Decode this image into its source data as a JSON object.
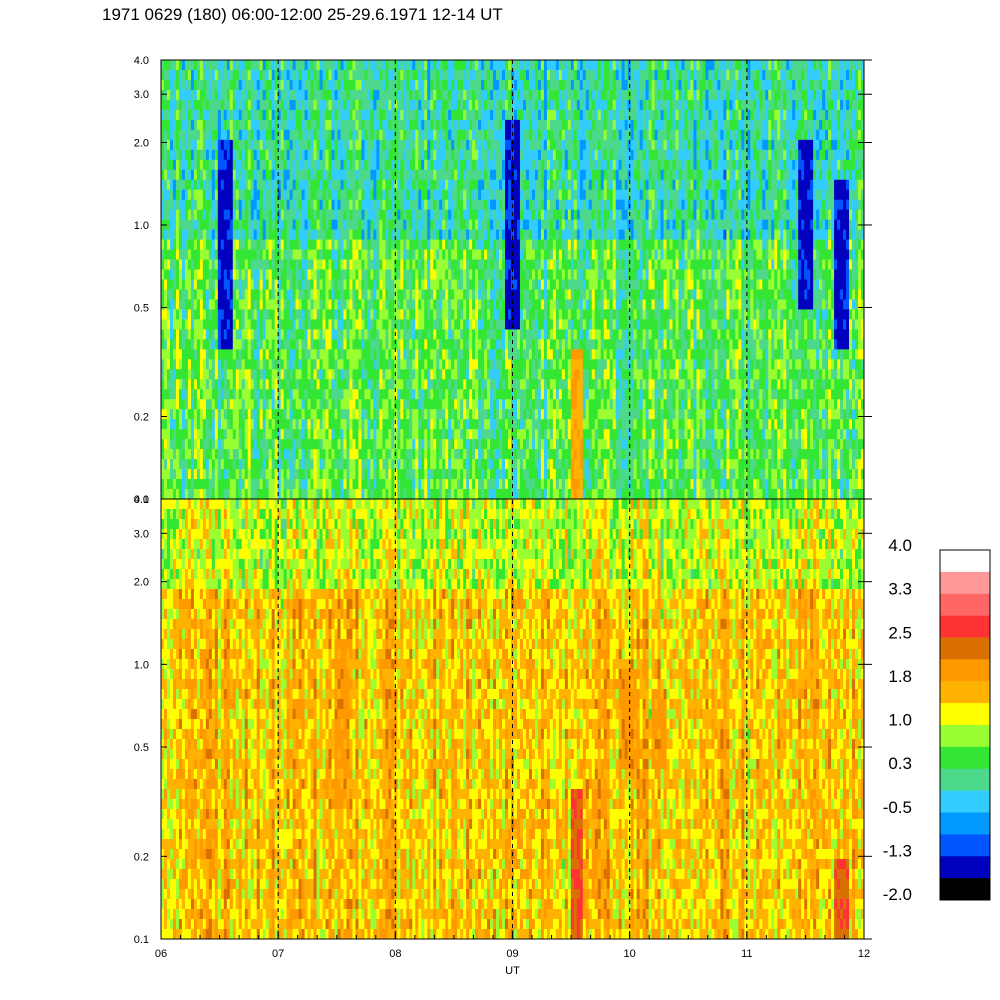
{
  "figure": {
    "title": "1971 0629 (180) 06:00-12:00 25-29.6.1971  12-14 UT"
  },
  "chart_data": {
    "type": "heatmap",
    "title": "1971 0629 (180) 06:00-12:00 25-29.6.1971  12-14 UT",
    "xlabel": "UT",
    "xlim": [
      6,
      12
    ],
    "x_tick_labels": [
      "06",
      "07",
      "08",
      "09",
      "10",
      "11",
      "12"
    ],
    "x_tick_values": [
      6,
      7,
      8,
      9,
      10,
      11,
      12
    ],
    "dashed_time_markers": [
      7,
      8,
      9,
      10,
      11
    ],
    "panels": [
      {
        "name": "top",
        "y_scale": "log",
        "ylim": [
          0.1,
          4.0
        ],
        "y_tick_values": [
          0.1,
          0.2,
          0.5,
          1.0,
          2.0,
          3.0,
          4.0
        ],
        "y_tick_labels": [
          "0.1",
          "0.2",
          "0.5",
          "1.0",
          "2.0",
          "3.0",
          "4.0"
        ],
        "background_level": 0.3,
        "features": [
          {
            "x": 6.55,
            "y": [
              0.35,
              2.0
            ],
            "level": -1.5
          },
          {
            "x": 9.0,
            "y": [
              0.4,
              2.5
            ],
            "level": -1.5
          },
          {
            "x": 9.55,
            "y": [
              0.1,
              0.35
            ],
            "level": 1.8
          },
          {
            "x": 11.5,
            "y": [
              0.5,
              2.0
            ],
            "level": -1.5
          },
          {
            "x": 11.8,
            "y": [
              0.35,
              1.5
            ],
            "level": -1.5
          }
        ]
      },
      {
        "name": "bottom",
        "y_scale": "log",
        "ylim": [
          0.1,
          4.0
        ],
        "y_tick_values": [
          0.1,
          0.2,
          0.5,
          1.0,
          2.0,
          3.0,
          4.0
        ],
        "y_tick_labels": [
          "0.1",
          "0.2",
          "0.5",
          "1.0",
          "2.0",
          "3.0",
          "4.0"
        ],
        "background_level": 1.3,
        "features": [
          {
            "x": 7.55,
            "y": [
              0.3,
              1.2
            ],
            "level": 2.0
          },
          {
            "x": 9.55,
            "y": [
              0.1,
              0.35
            ],
            "level": 2.6
          },
          {
            "x": 10.0,
            "y": [
              0.4,
              1.0
            ],
            "level": 2.0
          },
          {
            "x": 10.25,
            "y": [
              0.4,
              0.8
            ],
            "level": 2.0
          },
          {
            "x": 11.8,
            "y": [
              0.1,
              0.2
            ],
            "level": 2.6
          }
        ]
      }
    ],
    "colorbar": {
      "labels": [
        "4.0",
        "3.3",
        "2.5",
        "1.8",
        "1.0",
        "0.3",
        "-0.5",
        "-1.3",
        "-2.0"
      ],
      "colors": [
        "#ffffff",
        "#ff9999",
        "#ff6666",
        "#ff3333",
        "#d97000",
        "#ff9900",
        "#ffb300",
        "#ffff00",
        "#99ff33",
        "#33e633",
        "#4dd98c",
        "#33ccff",
        "#0099ff",
        "#0055ff",
        "#0000bf",
        "#000000"
      ]
    }
  }
}
